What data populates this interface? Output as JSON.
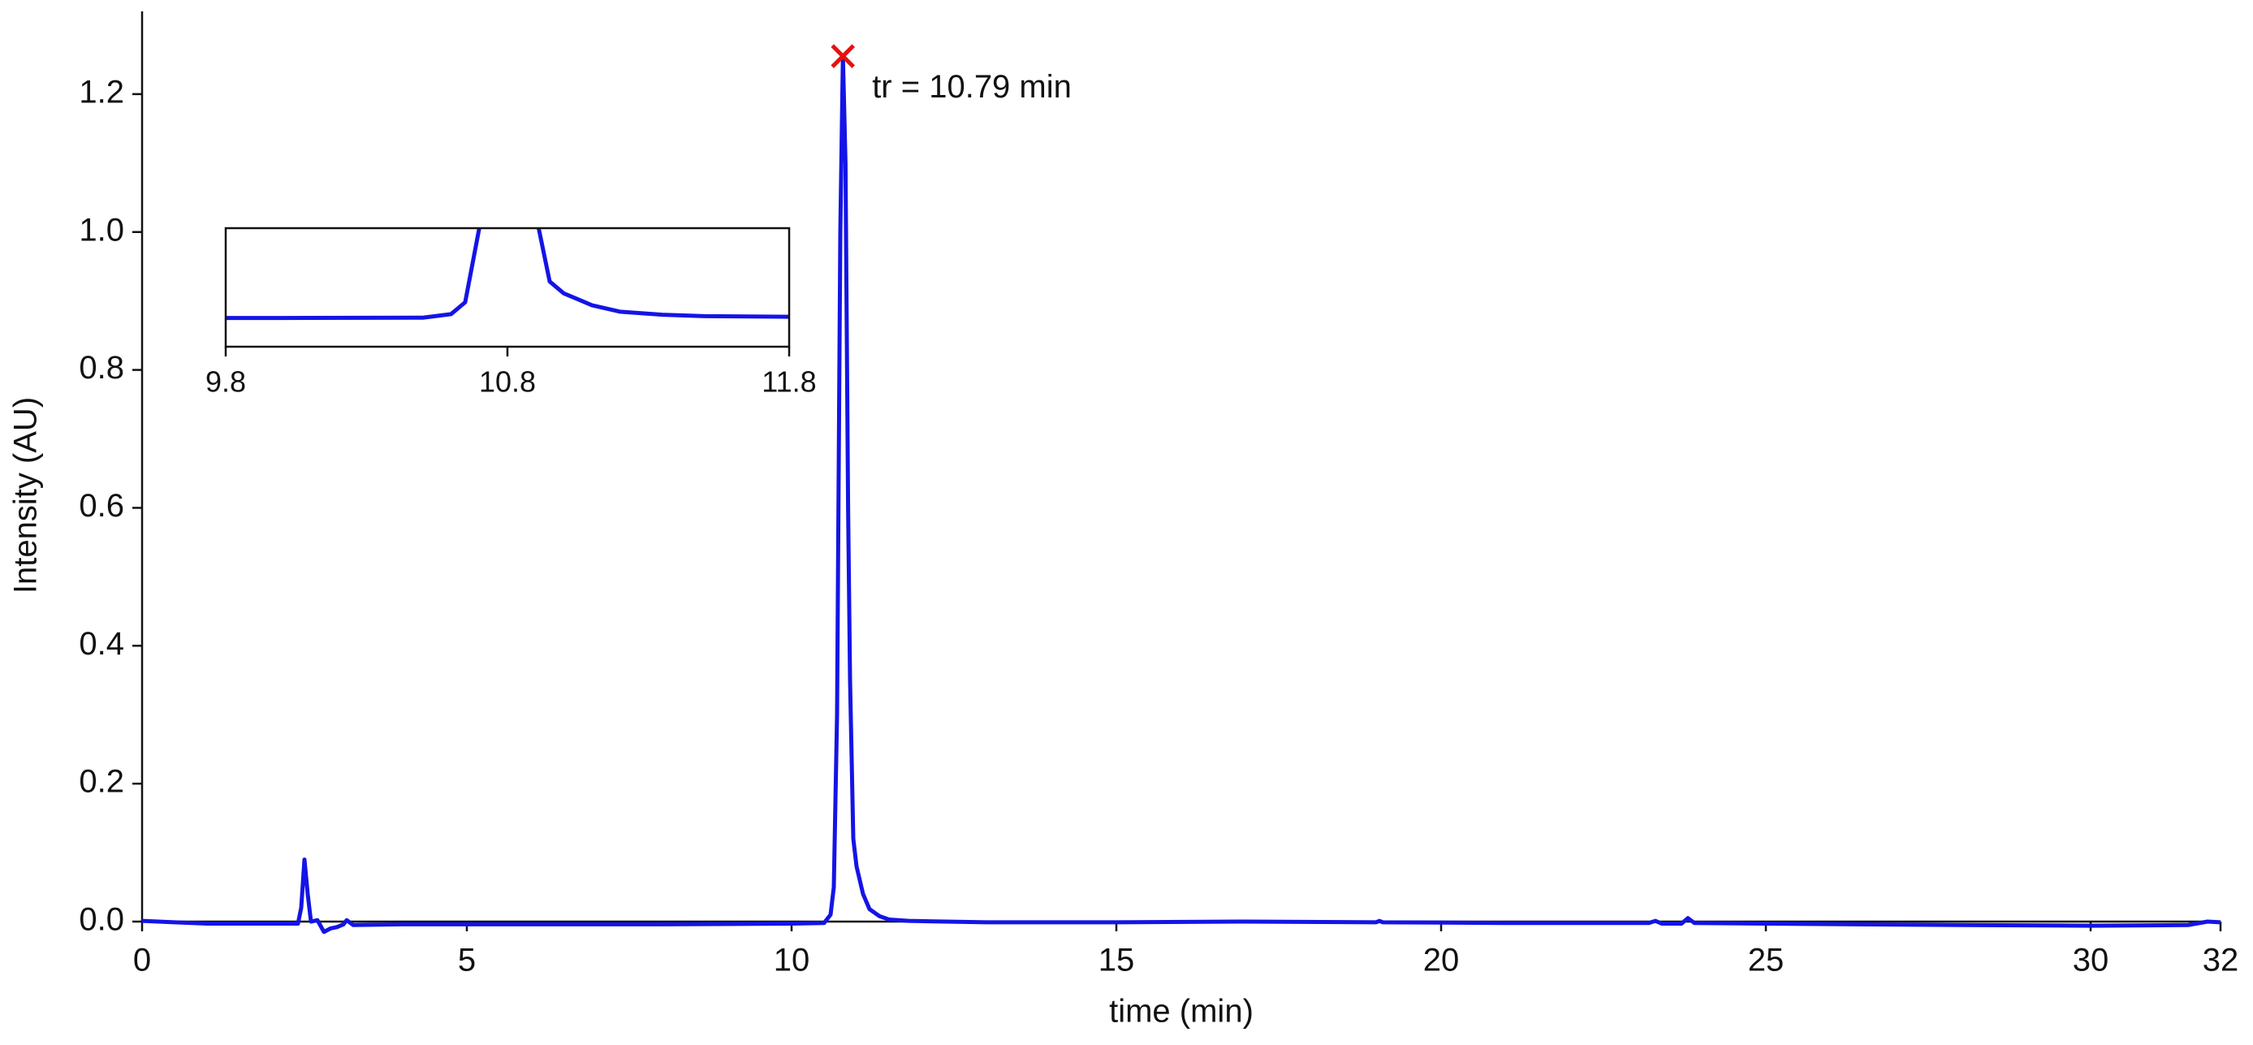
{
  "chart_data": {
    "type": "line",
    "xlabel": "time (min)",
    "ylabel": "Intensity (AU)",
    "x": [
      0,
      0.5,
      1,
      2,
      2.4,
      2.45,
      2.5,
      2.55,
      2.6,
      2.7,
      2.8,
      2.9,
      3.0,
      3.1,
      3.15,
      3.25,
      4,
      6,
      8,
      10,
      10.5,
      10.6,
      10.65,
      10.7,
      10.75,
      10.79,
      10.83,
      10.87,
      10.9,
      10.95,
      11.0,
      11.05,
      11.1,
      11.2,
      11.35,
      11.5,
      11.8,
      13,
      15,
      17,
      19,
      19.05,
      19.1,
      21,
      23.2,
      23.3,
      23.4,
      23.7,
      23.8,
      23.9,
      25,
      28,
      30,
      31.5,
      31.8,
      32
    ],
    "values": [
      0.001,
      -0.001,
      -0.003,
      -0.003,
      -0.003,
      0.02,
      0.09,
      0.04,
      0.0,
      0.002,
      -0.015,
      -0.01,
      -0.008,
      -0.004,
      0.002,
      -0.005,
      -0.004,
      -0.004,
      -0.004,
      -0.003,
      -0.002,
      0.01,
      0.05,
      0.3,
      1.0,
      1.255,
      1.1,
      0.6,
      0.35,
      0.12,
      0.08,
      0.06,
      0.04,
      0.018,
      0.008,
      0.003,
      0.001,
      -0.001,
      -0.001,
      0,
      -0.001,
      0.001,
      -0.001,
      -0.002,
      -0.002,
      0.001,
      -0.003,
      -0.003,
      0.005,
      -0.002,
      -0.003,
      -0.005,
      -0.006,
      -0.005,
      0.0,
      -0.001
    ],
    "color": "#1414e6",
    "xlim": [
      0,
      32
    ],
    "xticks": [
      0,
      5,
      10,
      15,
      20,
      25,
      30,
      32
    ],
    "ylim": [
      0,
      1.32
    ],
    "yticks": [
      {
        "value": 0,
        "label": "0.0"
      },
      0.2,
      0.4,
      0.6,
      0.8,
      {
        "value": 1,
        "label": "1.0"
      },
      1.2
    ],
    "annotation": {
      "x": 10.79,
      "y": 1.255,
      "color": "#e81010",
      "text": "tr = 10.79 min"
    },
    "inset": {
      "xlim": [
        9.8,
        11.8
      ],
      "xticks": [
        9.8,
        10.8,
        11.8
      ],
      "ylim": [
        -0.1,
        0.3
      ]
    }
  }
}
